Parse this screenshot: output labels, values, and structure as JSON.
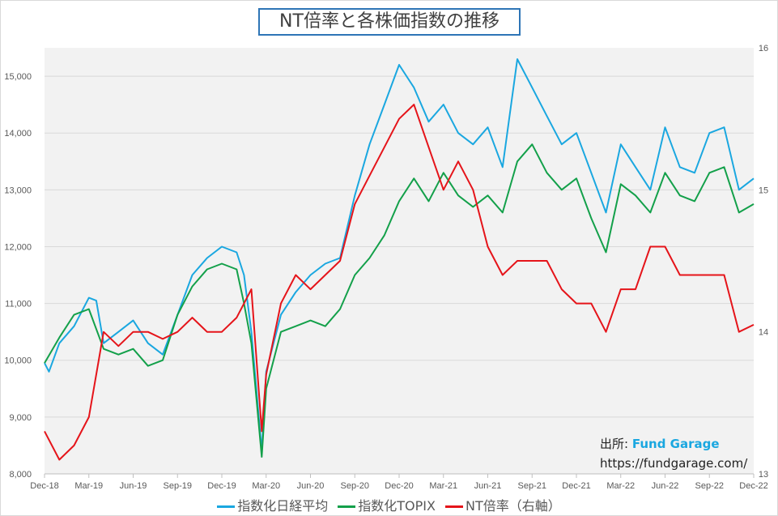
{
  "chart_data": {
    "type": "line",
    "title": "NT倍率と各株価指数の推移",
    "x_unit": "months since Dec-18",
    "x_ticks": [
      "Dec-18",
      "Mar-19",
      "Jun-19",
      "Sep-19",
      "Dec-19",
      "Mar-20",
      "Jun-20",
      "Sep-20",
      "Dec-20",
      "Mar-21",
      "Jun-21",
      "Sep-21",
      "Dec-21",
      "Mar-22",
      "Jun-22",
      "Sep-22",
      "Dec-22"
    ],
    "y_left": {
      "range": [
        8000,
        15500
      ],
      "ticks": [
        "8,000",
        "9,000",
        "10,000",
        "11,000",
        "12,000",
        "13,000",
        "14,000",
        "15,000"
      ],
      "tick_values": [
        8000,
        9000,
        10000,
        11000,
        12000,
        13000,
        14000,
        15000
      ]
    },
    "y_right": {
      "range": [
        13,
        16
      ],
      "ticks": [
        "13",
        "14",
        "15",
        "16"
      ],
      "tick_values": [
        13,
        14,
        15,
        16
      ]
    },
    "grid": true,
    "legend_position": "bottom",
    "series": [
      {
        "name": "指数化日経平均",
        "axis": "left",
        "color": "#1aa7e0",
        "x": [
          0,
          0.3,
          1,
          2,
          3,
          3.5,
          4,
          5,
          6,
          7,
          8,
          9,
          10,
          11,
          12,
          13,
          13.5,
          14,
          14.7,
          15,
          16,
          17,
          18,
          19,
          20,
          21,
          22,
          23,
          24,
          25,
          26,
          27,
          28,
          29,
          30,
          31,
          32,
          33,
          34,
          35,
          36,
          37,
          38,
          39,
          40,
          41,
          42,
          43,
          44,
          45,
          46,
          47,
          48
        ],
        "y": [
          9950,
          9800,
          10300,
          10600,
          11100,
          11050,
          10300,
          10500,
          10700,
          10300,
          10100,
          10800,
          11500,
          11800,
          12000,
          11900,
          11500,
          10500,
          8400,
          9800,
          10800,
          11200,
          11500,
          11700,
          11800,
          12900,
          13800,
          14500,
          15200,
          14800,
          14200,
          14500,
          14000,
          13800,
          14100,
          13400,
          15300,
          14800,
          14300,
          13800,
          14000,
          13300,
          12600,
          13800,
          13400,
          13000,
          14100,
          13400,
          13300,
          14000,
          14100,
          13000,
          13200
        ]
      },
      {
        "name": "指数化TOPIX",
        "axis": "left",
        "color": "#13a04a",
        "x": [
          0,
          1,
          2,
          3,
          4,
          5,
          6,
          7,
          8,
          9,
          10,
          11,
          12,
          13,
          13.5,
          14,
          14.7,
          15,
          16,
          17,
          18,
          19,
          20,
          21,
          22,
          23,
          24,
          25,
          26,
          27,
          28,
          29,
          30,
          31,
          32,
          33,
          34,
          35,
          36,
          37,
          38,
          39,
          40,
          41,
          42,
          43,
          44,
          45,
          46,
          47,
          48
        ],
        "y": [
          9950,
          10400,
          10800,
          10900,
          10200,
          10100,
          10200,
          9900,
          10000,
          10800,
          11300,
          11600,
          11700,
          11600,
          11000,
          10300,
          8300,
          9500,
          10500,
          10600,
          10700,
          10600,
          10900,
          11500,
          11800,
          12200,
          12800,
          13200,
          12800,
          13300,
          12900,
          12700,
          12900,
          12600,
          13500,
          13800,
          13300,
          13000,
          13200,
          12500,
          11900,
          13100,
          12900,
          12600,
          13300,
          12900,
          12800,
          13300,
          13400,
          12600,
          12750
        ]
      },
      {
        "name": "NT倍率（右軸）",
        "axis": "right",
        "color": "#e5141a",
        "x": [
          0,
          1,
          2,
          3,
          4,
          5,
          6,
          7,
          8,
          9,
          10,
          11,
          12,
          13,
          14,
          14.7,
          15,
          16,
          17,
          18,
          19,
          20,
          21,
          22,
          23,
          24,
          25,
          26,
          27,
          27.5,
          28,
          29,
          30,
          31,
          32,
          33,
          34,
          35,
          36,
          37,
          38,
          39,
          40,
          41,
          42,
          43,
          44,
          45,
          46,
          47,
          48
        ],
        "y": [
          13.3,
          13.1,
          13.2,
          13.4,
          14.0,
          13.9,
          14.0,
          14.0,
          13.95,
          14.0,
          14.1,
          14.0,
          14.0,
          14.1,
          14.3,
          13.3,
          13.7,
          14.2,
          14.4,
          14.3,
          14.4,
          14.5,
          14.9,
          15.1,
          15.3,
          15.5,
          15.6,
          15.3,
          15.0,
          15.1,
          15.2,
          15.0,
          14.6,
          14.4,
          14.5,
          14.5,
          14.5,
          14.3,
          14.2,
          14.2,
          14.0,
          14.3,
          14.3,
          14.6,
          14.6,
          14.4,
          14.4,
          14.4,
          14.4,
          14.0,
          14.05
        ]
      }
    ]
  },
  "source": {
    "label": "出所:",
    "brand": "Fund Garage",
    "url": "https://fundgarage.com/"
  }
}
